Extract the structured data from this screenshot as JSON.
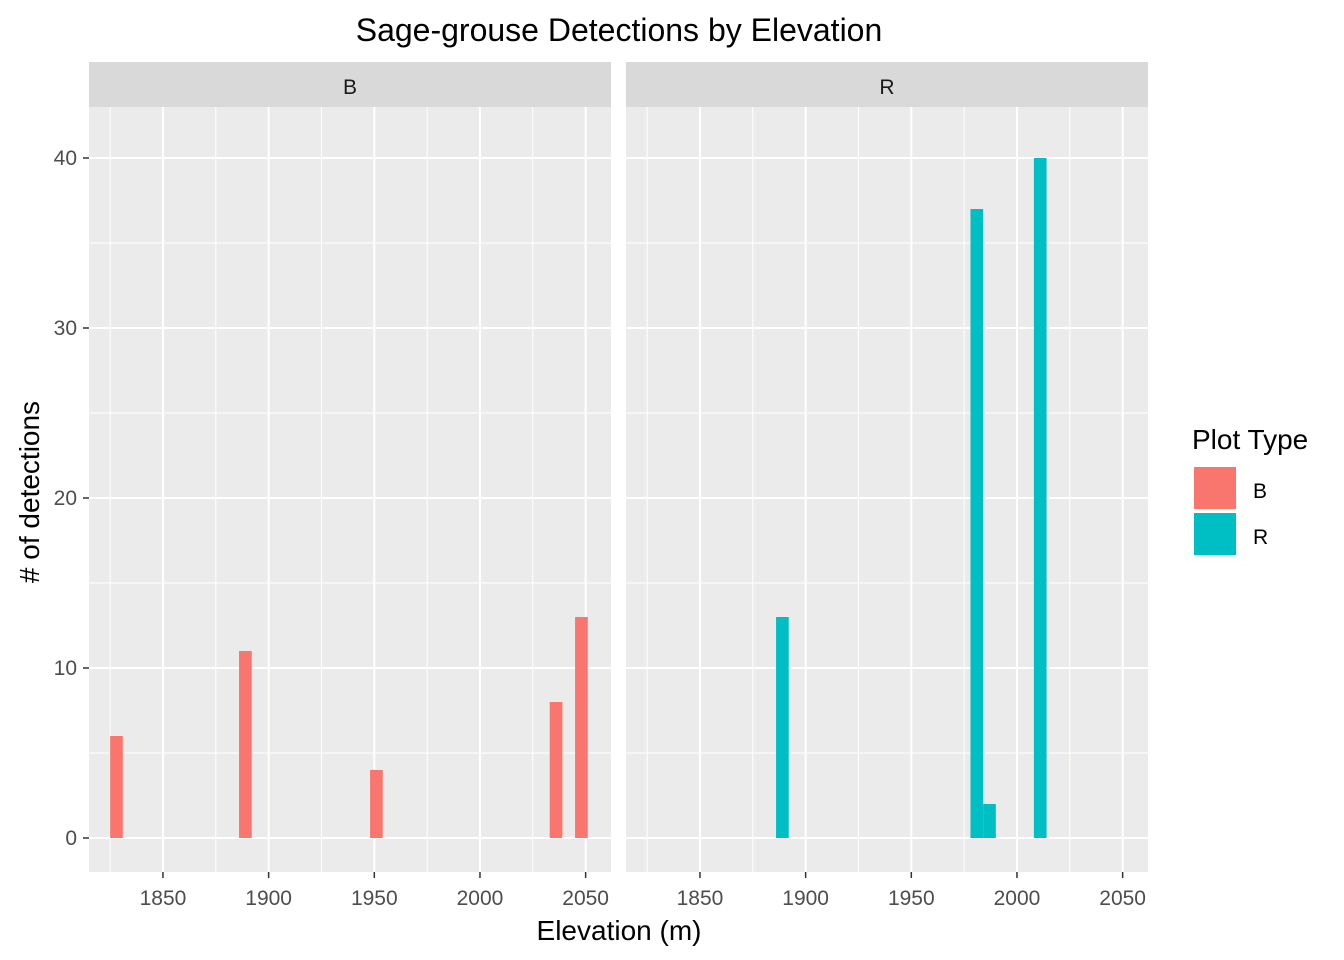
{
  "chart_data": {
    "type": "bar",
    "title": "Sage-grouse Detections by Elevation",
    "xlabel": "Elevation (m)",
    "ylabel": "# of detections",
    "xlim": [
      1815,
      2062
    ],
    "ylim": [
      -2,
      43
    ],
    "x_ticks": [
      1850,
      1900,
      1950,
      2000,
      2050
    ],
    "y_ticks": [
      0,
      10,
      20,
      30,
      40
    ],
    "bar_width": 6,
    "grid": true,
    "legend": {
      "title": "Plot Type",
      "position": "right",
      "entries": [
        {
          "label": "B",
          "color": "#F8766D"
        },
        {
          "label": "R",
          "color": "#00BFC4"
        }
      ]
    },
    "panels": [
      {
        "strip": "B",
        "color": "#F8766D",
        "x": [
          1828,
          1889,
          1951,
          2036,
          2048
        ],
        "values": [
          6,
          11,
          4,
          8,
          13
        ]
      },
      {
        "strip": "R",
        "color": "#00BFC4",
        "x": [
          1889,
          1981,
          1987,
          2011
        ],
        "values": [
          13,
          37,
          2,
          40
        ]
      }
    ]
  }
}
